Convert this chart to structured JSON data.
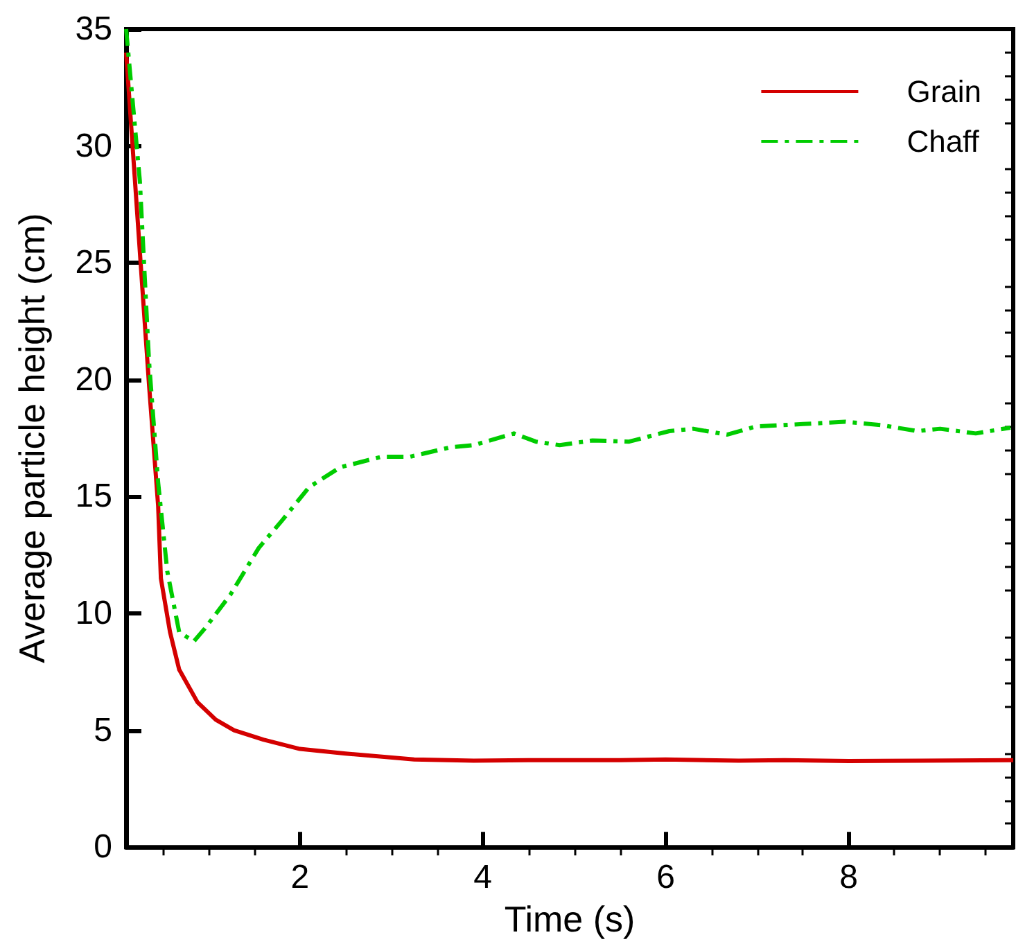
{
  "chart_data": {
    "type": "line",
    "xlabel": "Time (s)",
    "ylabel": "Average particle height (cm)",
    "xlim": [
      0.1,
      9.8
    ],
    "ylim": [
      0,
      35
    ],
    "xticks": [
      {
        "value": 0.5,
        "label": null
      },
      {
        "value": 1,
        "label": null
      },
      {
        "value": 1.5,
        "label": null
      },
      2,
      {
        "value": 2.5,
        "label": null
      },
      {
        "value": 3,
        "label": null
      },
      {
        "value": 3.5,
        "label": null
      },
      4,
      {
        "value": 4.5,
        "label": null
      },
      {
        "value": 5,
        "label": null
      },
      {
        "value": 5.5,
        "label": null
      },
      6,
      {
        "value": 6.5,
        "label": null
      },
      {
        "value": 7,
        "label": null
      },
      {
        "value": 7.5,
        "label": null
      },
      8,
      {
        "value": 8.5,
        "label": null
      },
      {
        "value": 9,
        "label": null
      },
      {
        "value": 9.5,
        "label": null
      }
    ],
    "yticks": [
      0,
      {
        "value": 1,
        "label": null
      },
      {
        "value": 2,
        "label": null
      },
      {
        "value": 3,
        "label": null
      },
      {
        "value": 4,
        "label": null
      },
      5,
      {
        "value": 6,
        "label": null
      },
      {
        "value": 7,
        "label": null
      },
      {
        "value": 8,
        "label": null
      },
      {
        "value": 9,
        "label": null
      },
      10,
      {
        "value": 11,
        "label": null
      },
      {
        "value": 12,
        "label": null
      },
      {
        "value": 13,
        "label": null
      },
      {
        "value": 14,
        "label": null
      },
      15,
      {
        "value": 16,
        "label": null
      },
      {
        "value": 17,
        "label": null
      },
      {
        "value": 18,
        "label": null
      },
      {
        "value": 19,
        "label": null
      },
      20,
      {
        "value": 21,
        "label": null
      },
      {
        "value": 22,
        "label": null
      },
      {
        "value": 23,
        "label": null
      },
      {
        "value": 24,
        "label": null
      },
      25,
      {
        "value": 26,
        "label": null
      },
      {
        "value": 27,
        "label": null
      },
      {
        "value": 28,
        "label": null
      },
      {
        "value": 29,
        "label": null
      },
      30,
      {
        "value": 31,
        "label": null
      },
      {
        "value": 32,
        "label": null
      },
      {
        "value": 33,
        "label": null
      },
      {
        "value": 34,
        "label": null
      },
      35
    ],
    "grid": false,
    "legend": "top right",
    "marker": "none",
    "series": [
      {
        "name": "Grain",
        "color": "#d40000",
        "line_style": "solid",
        "x": [
          0.1,
          0.35,
          0.45,
          0.48,
          0.58,
          0.68,
          0.88,
          1.08,
          1.28,
          1.6,
          2.0,
          2.5,
          3.25,
          3.9,
          4.5,
          5.5,
          6.0,
          6.8,
          7.3,
          8.0,
          8.8,
          9.8
        ],
        "values": [
          34,
          19.8,
          14.6,
          11.5,
          9.2,
          7.6,
          6.2,
          5.45,
          5.0,
          4.6,
          4.2,
          4.0,
          3.75,
          3.7,
          3.72,
          3.72,
          3.75,
          3.7,
          3.72,
          3.68,
          3.7,
          3.72
        ]
      },
      {
        "name": "Chaff",
        "color": "#00cc00",
        "line_style": "dashdot",
        "x": [
          0.1,
          0.25,
          0.35,
          0.45,
          0.55,
          0.68,
          0.84,
          0.96,
          1.24,
          1.55,
          1.81,
          2.1,
          2.44,
          2.89,
          3.2,
          3.64,
          3.9,
          4.34,
          4.58,
          4.84,
          5.2,
          5.6,
          6.04,
          6.3,
          6.67,
          6.99,
          7.5,
          7.96,
          8.37,
          8.75,
          9.0,
          9.39,
          9.77
        ],
        "values": [
          35,
          28.5,
          20.8,
          15.6,
          11.8,
          9.2,
          8.8,
          9.35,
          10.8,
          12.8,
          14.0,
          15.4,
          16.25,
          16.7,
          16.7,
          17.1,
          17.2,
          17.7,
          17.35,
          17.2,
          17.4,
          17.35,
          17.8,
          17.9,
          17.65,
          18.0,
          18.1,
          18.2,
          18.05,
          17.8,
          17.9,
          17.7,
          17.95
        ]
      }
    ]
  }
}
